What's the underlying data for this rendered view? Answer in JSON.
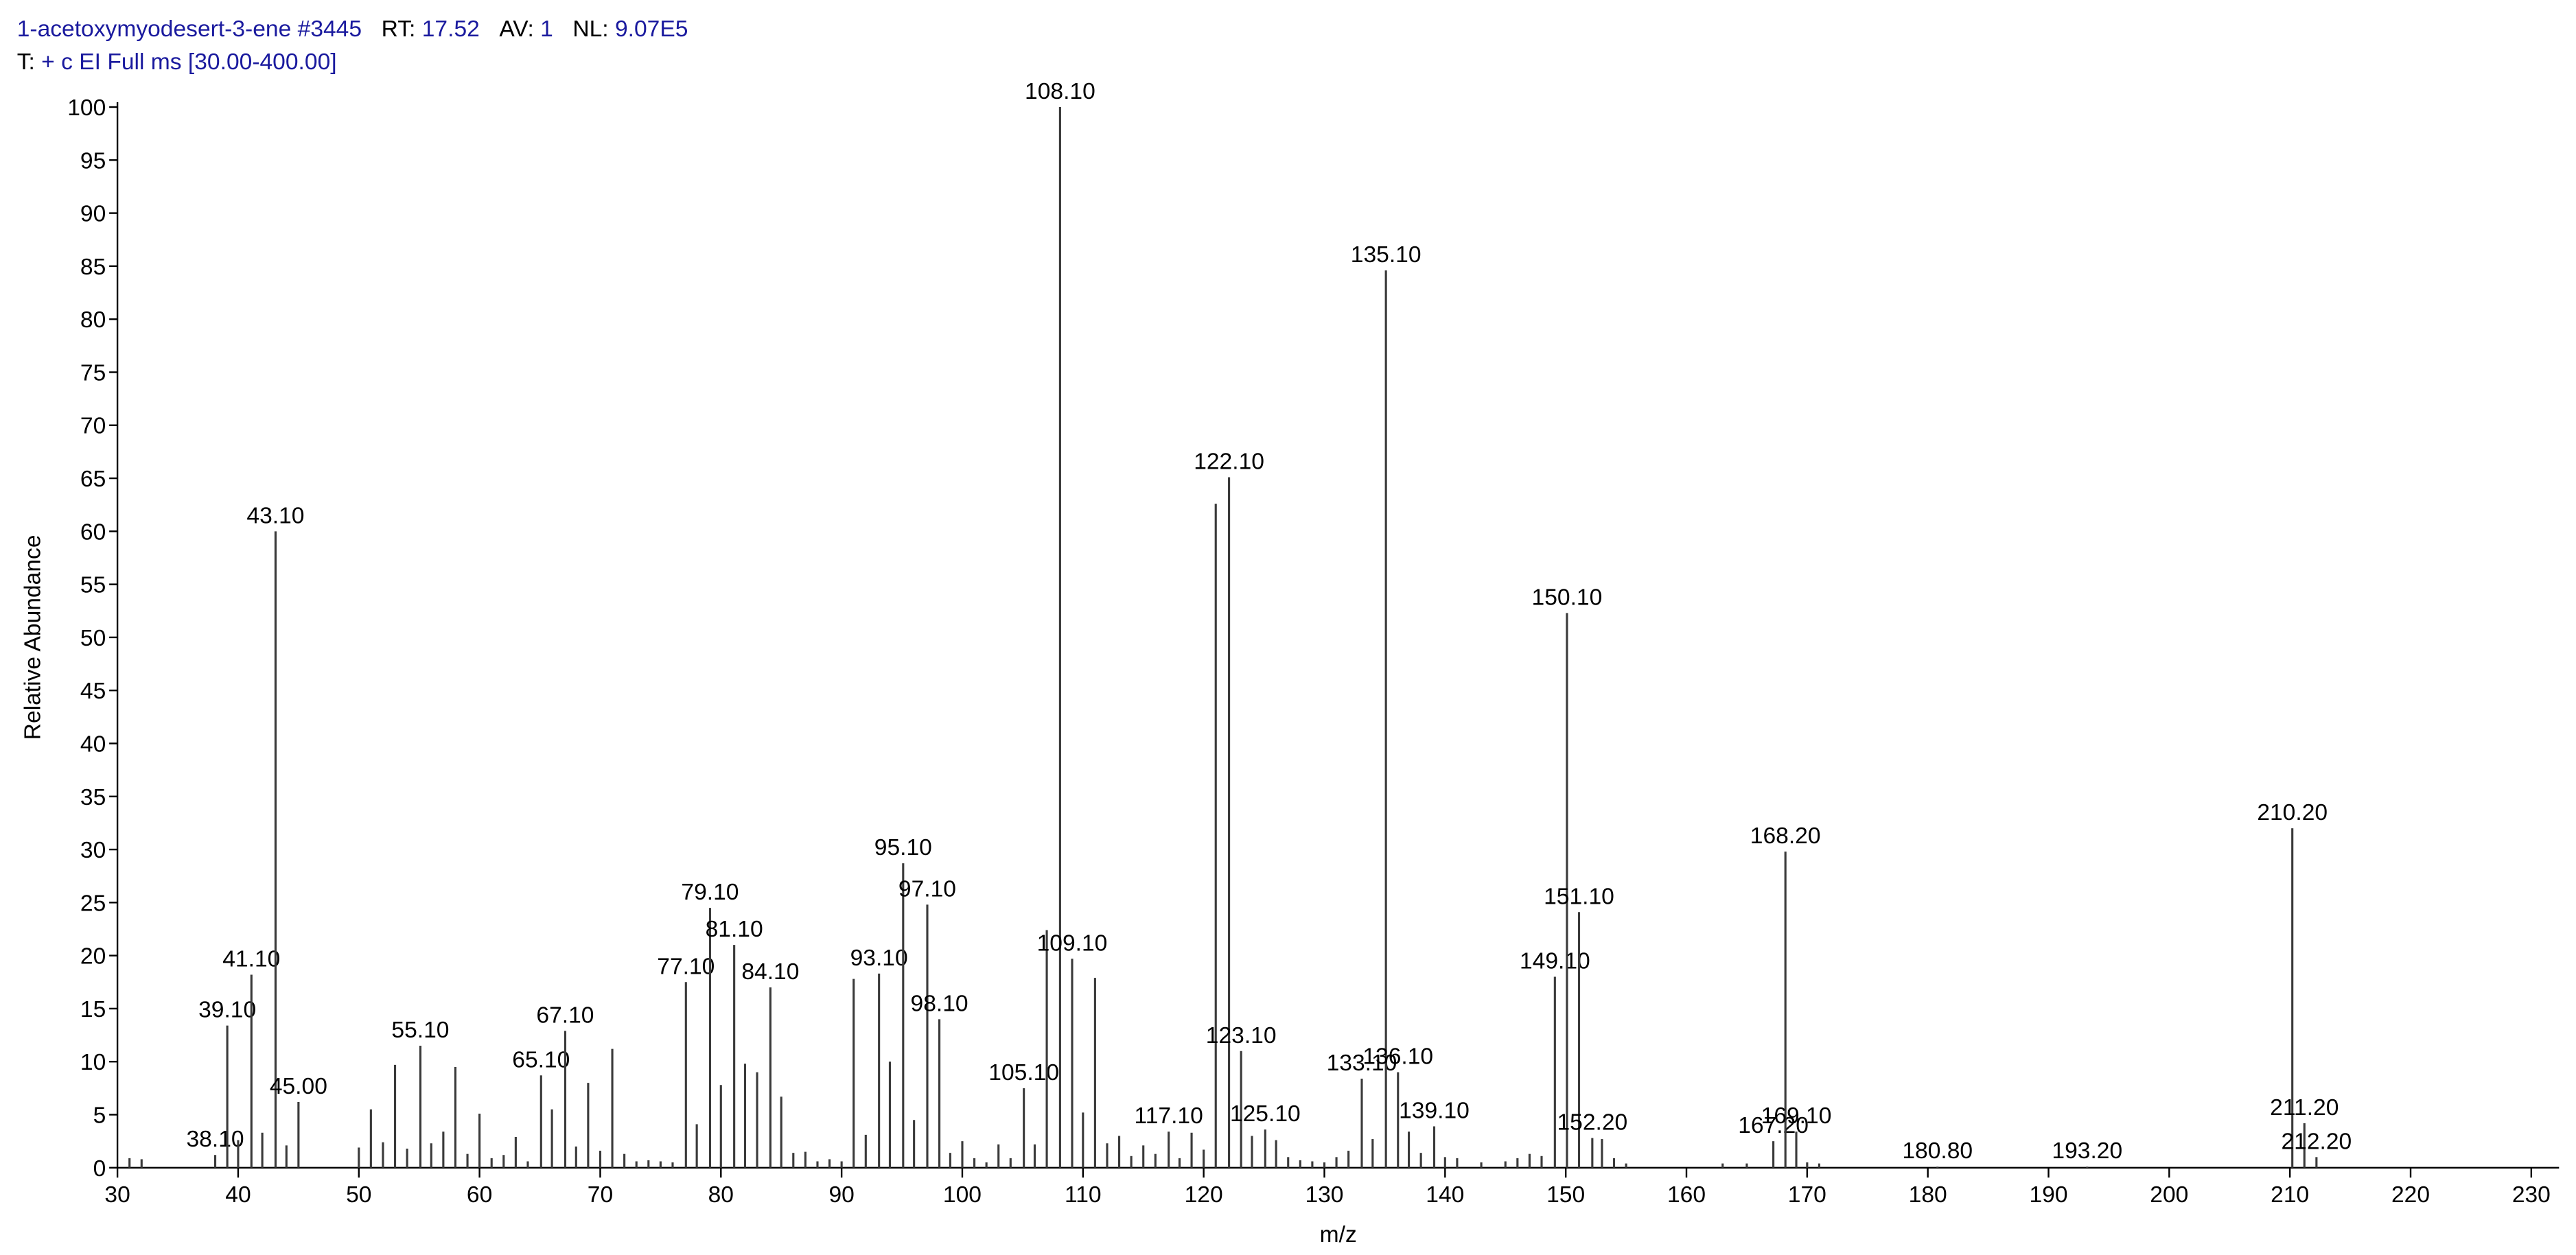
{
  "header": {
    "compound": "1-acetoxymyodesert-3-ene",
    "scan": "#3445",
    "rt_label": "RT:",
    "rt": "17.52",
    "av_label": "AV:",
    "av": "1",
    "nl_label": "NL:",
    "nl": "9.07E5",
    "filter_label": "T:",
    "filter": "+ c EI Full ms [30.00-400.00]"
  },
  "chart_data": {
    "type": "spectrum",
    "x_label": "m/z",
    "y_label": "Relative Abundance",
    "color": "#3a3a3a",
    "xlim": [
      30,
      232.3
    ],
    "ylim": [
      0,
      100
    ],
    "xticks": [
      30,
      40,
      50,
      60,
      70,
      80,
      90,
      100,
      110,
      120,
      130,
      140,
      150,
      160,
      170,
      180,
      190,
      200,
      210,
      220,
      230
    ],
    "yticks": [
      0,
      5,
      10,
      15,
      20,
      25,
      30,
      35,
      40,
      45,
      50,
      55,
      60,
      65,
      70,
      75,
      80,
      85,
      90,
      95,
      100
    ],
    "peaks": [
      {
        "x": 31,
        "y": 0.9
      },
      {
        "x": 32,
        "y": 0.8
      },
      {
        "x": 38.1,
        "y": 1.2,
        "label": "38.10"
      },
      {
        "x": 39.1,
        "y": 13.4,
        "label": "39.10"
      },
      {
        "x": 40,
        "y": 2.6
      },
      {
        "x": 41.1,
        "y": 18.2,
        "label": "41.10"
      },
      {
        "x": 42,
        "y": 3.3
      },
      {
        "x": 43.1,
        "y": 60.0,
        "label": "43.10"
      },
      {
        "x": 44,
        "y": 2.1
      },
      {
        "x": 45,
        "y": 6.2,
        "label": "45.00"
      },
      {
        "x": 50,
        "y": 1.9
      },
      {
        "x": 51,
        "y": 5.5
      },
      {
        "x": 52,
        "y": 2.4
      },
      {
        "x": 53,
        "y": 9.7
      },
      {
        "x": 54,
        "y": 1.8
      },
      {
        "x": 55.1,
        "y": 11.5,
        "label": "55.10"
      },
      {
        "x": 56,
        "y": 2.3
      },
      {
        "x": 57,
        "y": 3.4
      },
      {
        "x": 58,
        "y": 9.5
      },
      {
        "x": 59,
        "y": 1.3
      },
      {
        "x": 60,
        "y": 5.1
      },
      {
        "x": 61,
        "y": 0.9
      },
      {
        "x": 62,
        "y": 1.2
      },
      {
        "x": 63,
        "y": 2.9
      },
      {
        "x": 64,
        "y": 0.6
      },
      {
        "x": 65.1,
        "y": 8.7,
        "label": "65.10"
      },
      {
        "x": 66,
        "y": 5.5
      },
      {
        "x": 67.1,
        "y": 12.9,
        "label": "67.10"
      },
      {
        "x": 68,
        "y": 2.0
      },
      {
        "x": 69,
        "y": 8.0
      },
      {
        "x": 70,
        "y": 1.6
      },
      {
        "x": 71,
        "y": 11.2
      },
      {
        "x": 72,
        "y": 1.3
      },
      {
        "x": 73,
        "y": 0.6
      },
      {
        "x": 74,
        "y": 0.7
      },
      {
        "x": 75,
        "y": 0.6
      },
      {
        "x": 76,
        "y": 0.5
      },
      {
        "x": 77.1,
        "y": 17.5,
        "label": "77.10"
      },
      {
        "x": 78,
        "y": 4.1
      },
      {
        "x": 79.1,
        "y": 24.5,
        "label": "79.10"
      },
      {
        "x": 80,
        "y": 7.8
      },
      {
        "x": 81.1,
        "y": 21.0,
        "label": "81.10"
      },
      {
        "x": 82,
        "y": 9.8
      },
      {
        "x": 83,
        "y": 9.0
      },
      {
        "x": 84.1,
        "y": 17.0,
        "label": "84.10"
      },
      {
        "x": 85,
        "y": 6.7
      },
      {
        "x": 86,
        "y": 1.4
      },
      {
        "x": 87,
        "y": 1.5
      },
      {
        "x": 88,
        "y": 0.6
      },
      {
        "x": 89,
        "y": 0.8
      },
      {
        "x": 90,
        "y": 0.6
      },
      {
        "x": 91,
        "y": 17.8
      },
      {
        "x": 92,
        "y": 3.1
      },
      {
        "x": 93.1,
        "y": 18.3,
        "label": "93.10"
      },
      {
        "x": 94,
        "y": 10.0
      },
      {
        "x": 95.1,
        "y": 28.7,
        "label": "95.10"
      },
      {
        "x": 96,
        "y": 4.5
      },
      {
        "x": 97.1,
        "y": 24.8,
        "label": "97.10"
      },
      {
        "x": 98.1,
        "y": 14.0,
        "label": "98.10"
      },
      {
        "x": 99,
        "y": 1.4
      },
      {
        "x": 100,
        "y": 2.5
      },
      {
        "x": 101,
        "y": 0.9
      },
      {
        "x": 102,
        "y": 0.5
      },
      {
        "x": 103,
        "y": 2.2
      },
      {
        "x": 104,
        "y": 0.9
      },
      {
        "x": 105.1,
        "y": 7.5,
        "label": "105.10"
      },
      {
        "x": 106,
        "y": 2.2
      },
      {
        "x": 107,
        "y": 22.4
      },
      {
        "x": 108.1,
        "y": 100,
        "label": "108.10"
      },
      {
        "x": 109.1,
        "y": 19.7,
        "label": "109.10"
      },
      {
        "x": 110,
        "y": 5.2
      },
      {
        "x": 111,
        "y": 17.9
      },
      {
        "x": 112,
        "y": 2.3
      },
      {
        "x": 113,
        "y": 3.0
      },
      {
        "x": 114,
        "y": 1.1
      },
      {
        "x": 115,
        "y": 2.1
      },
      {
        "x": 116,
        "y": 1.3
      },
      {
        "x": 117.1,
        "y": 3.4,
        "label": "117.10"
      },
      {
        "x": 118,
        "y": 0.9
      },
      {
        "x": 119,
        "y": 3.3
      },
      {
        "x": 120,
        "y": 1.7
      },
      {
        "x": 121,
        "y": 62.6
      },
      {
        "x": 122.1,
        "y": 65.1,
        "label": "122.10"
      },
      {
        "x": 123.1,
        "y": 11.0,
        "label": "123.10"
      },
      {
        "x": 124,
        "y": 3.0
      },
      {
        "x": 125.1,
        "y": 3.6,
        "label": "125.10"
      },
      {
        "x": 126,
        "y": 2.6
      },
      {
        "x": 127,
        "y": 1.0
      },
      {
        "x": 128,
        "y": 0.7
      },
      {
        "x": 129,
        "y": 0.6
      },
      {
        "x": 130,
        "y": 0.5
      },
      {
        "x": 131,
        "y": 1.0
      },
      {
        "x": 132,
        "y": 1.6
      },
      {
        "x": 133.1,
        "y": 8.4,
        "label": "133.10"
      },
      {
        "x": 134,
        "y": 2.7
      },
      {
        "x": 135.1,
        "y": 84.6,
        "label": "135.10"
      },
      {
        "x": 136.1,
        "y": 9.0,
        "label": "136.10"
      },
      {
        "x": 137,
        "y": 3.4
      },
      {
        "x": 138,
        "y": 1.4
      },
      {
        "x": 139.1,
        "y": 3.9,
        "label": "139.10"
      },
      {
        "x": 140,
        "y": 1.0
      },
      {
        "x": 141,
        "y": 0.9
      },
      {
        "x": 143,
        "y": 0.5
      },
      {
        "x": 145,
        "y": 0.6
      },
      {
        "x": 146,
        "y": 0.9
      },
      {
        "x": 147,
        "y": 1.3
      },
      {
        "x": 148,
        "y": 1.1
      },
      {
        "x": 149.1,
        "y": 18.0,
        "label": "149.10"
      },
      {
        "x": 150.1,
        "y": 52.3,
        "label": "150.10"
      },
      {
        "x": 151.1,
        "y": 24.1,
        "label": "151.10"
      },
      {
        "x": 152.2,
        "y": 2.8,
        "label": "152.20"
      },
      {
        "x": 153,
        "y": 2.7
      },
      {
        "x": 154,
        "y": 0.9
      },
      {
        "x": 155,
        "y": 0.4
      },
      {
        "x": 163,
        "y": 0.4
      },
      {
        "x": 165,
        "y": 0.4
      },
      {
        "x": 167.2,
        "y": 2.5,
        "label": "167.20"
      },
      {
        "x": 168.2,
        "y": 29.8,
        "label": "168.20"
      },
      {
        "x": 169.1,
        "y": 3.4,
        "label": "169.10"
      },
      {
        "x": 170,
        "y": 0.5
      },
      {
        "x": 171,
        "y": 0.4
      },
      {
        "x": 180.8,
        "y": 0.1,
        "label": "180.80"
      },
      {
        "x": 193.2,
        "y": 0.1,
        "label": "193.20"
      },
      {
        "x": 210.2,
        "y": 32.0,
        "label": "210.20"
      },
      {
        "x": 211.2,
        "y": 4.2,
        "label": "211.20"
      },
      {
        "x": 212.2,
        "y": 1.0,
        "label": "212.20"
      }
    ]
  }
}
